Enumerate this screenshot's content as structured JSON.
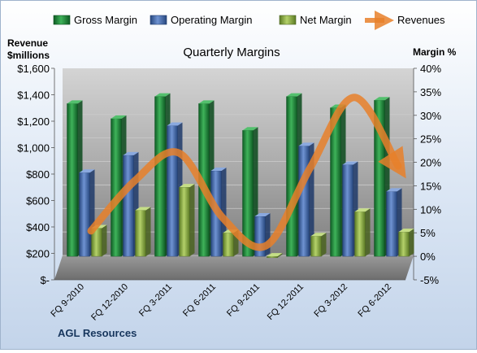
{
  "chart_data": {
    "type": "bar",
    "title": "Quarterly Margins",
    "y_left_label_line1": "Revenue",
    "y_left_label_line2": "$millions",
    "y_right_label": "Margin %",
    "categories": [
      "FQ 9-2010",
      "FQ 12-2010",
      "FQ 3-2011",
      "FQ 6-2011",
      "FQ 9-2011",
      "FQ 12-2011",
      "FQ 3-2012",
      "FQ 6-2012"
    ],
    "left_axis": {
      "ticks": [
        0,
        200,
        400,
        600,
        800,
        1000,
        1200,
        1400,
        1600
      ],
      "tick_labels": [
        "$-",
        "$200",
        "$400",
        "$600",
        "$800",
        "$1,000",
        "$1,200",
        "$1,400",
        "$1,600"
      ],
      "range": [
        0,
        1600
      ]
    },
    "right_axis": {
      "ticks": [
        -5,
        0,
        5,
        10,
        15,
        20,
        25,
        30,
        35,
        40
      ],
      "tick_labels": [
        "-5%",
        "0%",
        "5%",
        "10%",
        "15%",
        "20%",
        "25%",
        "30%",
        "35%",
        "40%"
      ],
      "range": [
        -5,
        40
      ]
    },
    "series": [
      {
        "name": "Gross Margin",
        "kind": "bar",
        "axis": "right",
        "color": "#1f8a3c",
        "values": [
          32.5,
          29.3,
          34.0,
          32.5,
          26.8,
          34.0,
          31.6,
          33.2
        ]
      },
      {
        "name": "Operating Margin",
        "kind": "bar",
        "axis": "right",
        "color": "#4a72b8",
        "values": [
          17.8,
          21.5,
          27.8,
          18.2,
          8.5,
          23.5,
          19.5,
          13.8
        ]
      },
      {
        "name": "Net Margin",
        "kind": "bar",
        "axis": "right",
        "color": "#8eb04a",
        "values": [
          6.0,
          9.8,
          14.7,
          5.0,
          -0.3,
          4.3,
          9.5,
          5.2
        ]
      },
      {
        "name": "Revenues",
        "kind": "line",
        "axis": "left",
        "color": "#e8802a",
        "values": [
          370,
          750,
          960,
          470,
          260,
          850,
          1380,
          860
        ]
      }
    ],
    "grid": true,
    "legend_position": "top",
    "footer": "AGL Resources"
  }
}
